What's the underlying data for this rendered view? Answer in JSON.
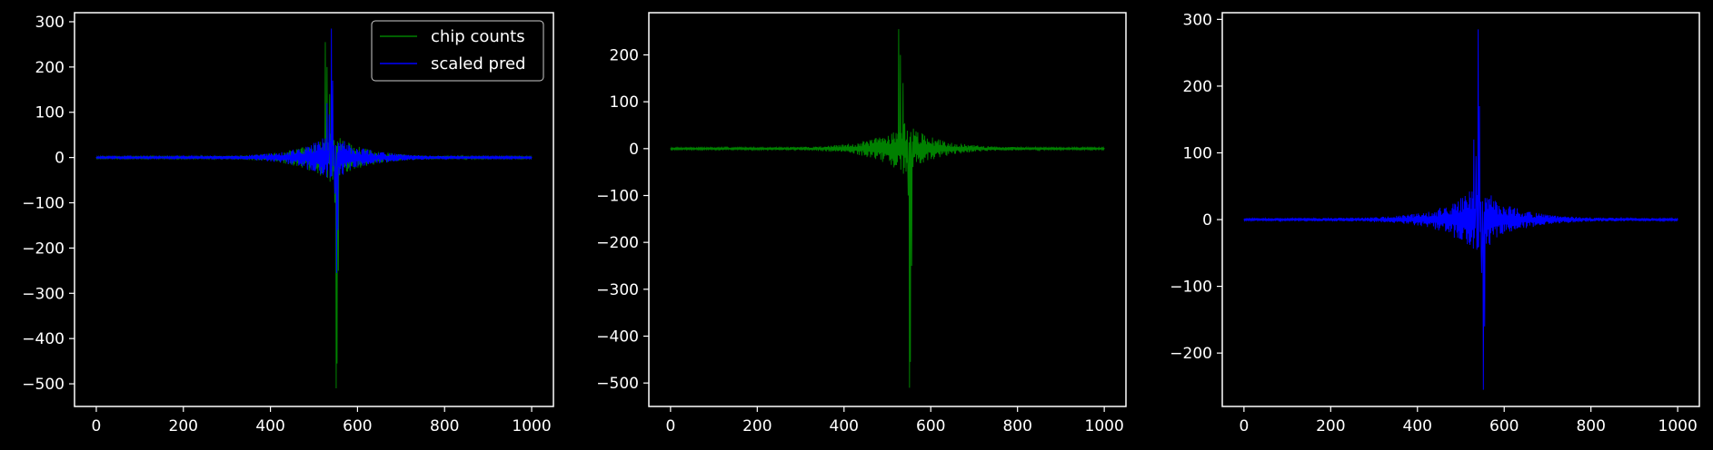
{
  "chart_data": [
    {
      "type": "line",
      "name": "combined",
      "xlim": [
        -50,
        1050
      ],
      "ylim": [
        -550,
        320
      ],
      "xticks": [
        0,
        200,
        400,
        600,
        800,
        1000
      ],
      "yticks": [
        -500,
        -400,
        -300,
        -200,
        -100,
        0,
        100,
        200,
        300
      ],
      "xtick_labels": [
        "0",
        "200",
        "400",
        "600",
        "800",
        "1000"
      ],
      "ytick_labels": [
        "−500",
        "−400",
        "−300",
        "−200",
        "−100",
        "0",
        "100",
        "200",
        "300"
      ],
      "legend": {
        "position": "top-right",
        "entries": [
          {
            "label": "chip counts",
            "color": "#008000"
          },
          {
            "label": "scaled pred",
            "color": "#0000ff"
          }
        ]
      },
      "series": [
        {
          "key": "chip",
          "name": "chip counts",
          "color": "#008000"
        },
        {
          "key": "pred",
          "name": "scaled pred",
          "color": "#0000ff"
        }
      ]
    },
    {
      "type": "line",
      "name": "chip-only",
      "xlim": [
        -50,
        1050
      ],
      "ylim": [
        -550,
        290
      ],
      "xticks": [
        0,
        200,
        400,
        600,
        800,
        1000
      ],
      "yticks": [
        -500,
        -400,
        -300,
        -200,
        -100,
        0,
        100,
        200
      ],
      "xtick_labels": [
        "0",
        "200",
        "400",
        "600",
        "800",
        "1000"
      ],
      "ytick_labels": [
        "−500",
        "−400",
        "−300",
        "−200",
        "−100",
        "0",
        "100",
        "200"
      ],
      "series": [
        {
          "key": "chip",
          "name": "chip counts",
          "color": "#008000"
        }
      ]
    },
    {
      "type": "line",
      "name": "pred-only",
      "xlim": [
        -50,
        1050
      ],
      "ylim": [
        -280,
        310
      ],
      "xticks": [
        0,
        200,
        400,
        600,
        800,
        1000
      ],
      "yticks": [
        -200,
        -100,
        0,
        100,
        200,
        300
      ],
      "xtick_labels": [
        "0",
        "200",
        "400",
        "600",
        "800",
        "1000"
      ],
      "ytick_labels": [
        "−200",
        "−100",
        "0",
        "100",
        "200",
        "300"
      ],
      "series": [
        {
          "key": "pred",
          "name": "scaled pred",
          "color": "#0000ff"
        }
      ]
    }
  ],
  "series_shapes": {
    "chip": {
      "x_range": [
        0,
        1000
      ],
      "noise_seed": 7,
      "spikes": [
        {
          "x": 526,
          "y": 255
        },
        {
          "x": 530,
          "y": 200
        },
        {
          "x": 536,
          "y": 140
        },
        {
          "x": 548,
          "y": -100
        },
        {
          "x": 551,
          "y": -510
        },
        {
          "x": 553,
          "y": -455
        },
        {
          "x": 556,
          "y": -250
        }
      ]
    },
    "pred": {
      "x_range": [
        0,
        1000
      ],
      "noise_seed": 13,
      "spikes": [
        {
          "x": 530,
          "y": 120
        },
        {
          "x": 535,
          "y": 95
        },
        {
          "x": 540,
          "y": 285
        },
        {
          "x": 543,
          "y": 170
        },
        {
          "x": 548,
          "y": -80
        },
        {
          "x": 552,
          "y": -255
        },
        {
          "x": 555,
          "y": -160
        }
      ]
    }
  },
  "colors": {
    "background": "#000000",
    "axes": "#ffffff",
    "text": "#ffffff",
    "legend_bg": "#000000",
    "legend_border": "#cccccc"
  }
}
